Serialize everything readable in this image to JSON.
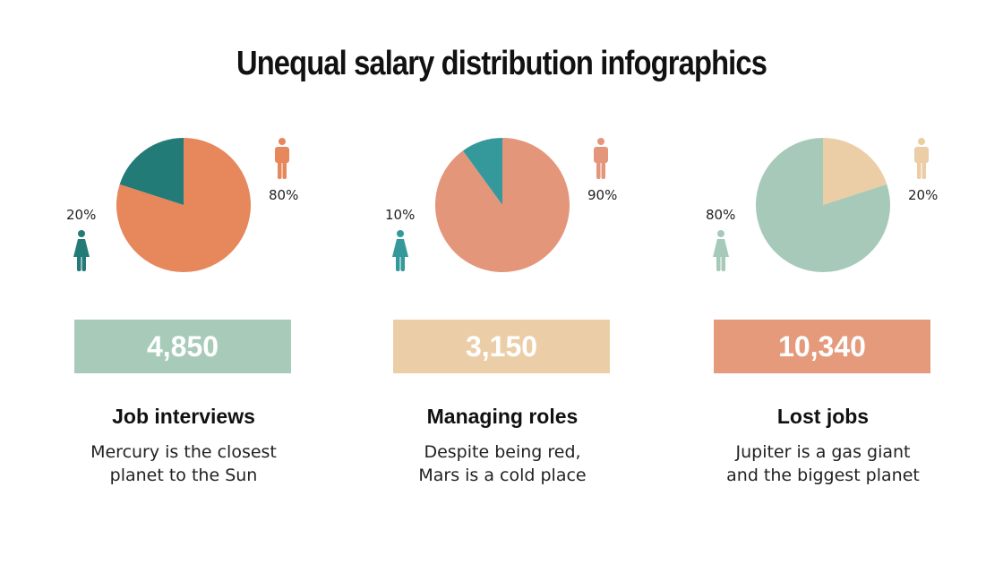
{
  "title": "Unequal salary distribution infographics",
  "chart_data": [
    {
      "type": "pie",
      "slices": [
        {
          "label": "male",
          "value": 80,
          "color": "#e6875c"
        },
        {
          "label": "female",
          "value": 20,
          "color": "#237b78"
        }
      ],
      "labels": {
        "male": "80%",
        "female": "20%"
      },
      "male_icon_color": "#e6875c",
      "female_icon_color": "#237b78",
      "stat": "4,850",
      "stat_color": "#a8cbb9",
      "heading": "Job interviews",
      "description": [
        "Mercury is the closest",
        "planet to the Sun"
      ]
    },
    {
      "type": "pie",
      "slices": [
        {
          "label": "male",
          "value": 90,
          "color": "#e4967a"
        },
        {
          "label": "female",
          "value": 10,
          "color": "#35999c"
        }
      ],
      "labels": {
        "male": "90%",
        "female": "10%"
      },
      "male_icon_color": "#e4967a",
      "female_icon_color": "#35999c",
      "stat": "3,150",
      "stat_color": "#ebcea8",
      "heading": "Managing roles",
      "description": [
        "Despite being red,",
        "Mars is a cold place"
      ]
    },
    {
      "type": "pie",
      "slices": [
        {
          "label": "male",
          "value": 20,
          "color": "#ebcda6"
        },
        {
          "label": "female",
          "value": 80,
          "color": "#a7c9b9"
        }
      ],
      "labels": {
        "male": "20%",
        "female": "80%"
      },
      "male_icon_color": "#ebcda6",
      "female_icon_color": "#a7c9b9",
      "stat": "10,340",
      "stat_color": "#e59a7b",
      "heading": "Lost jobs",
      "description": [
        "Jupiter is a gas giant",
        "and the biggest planet"
      ]
    }
  ]
}
